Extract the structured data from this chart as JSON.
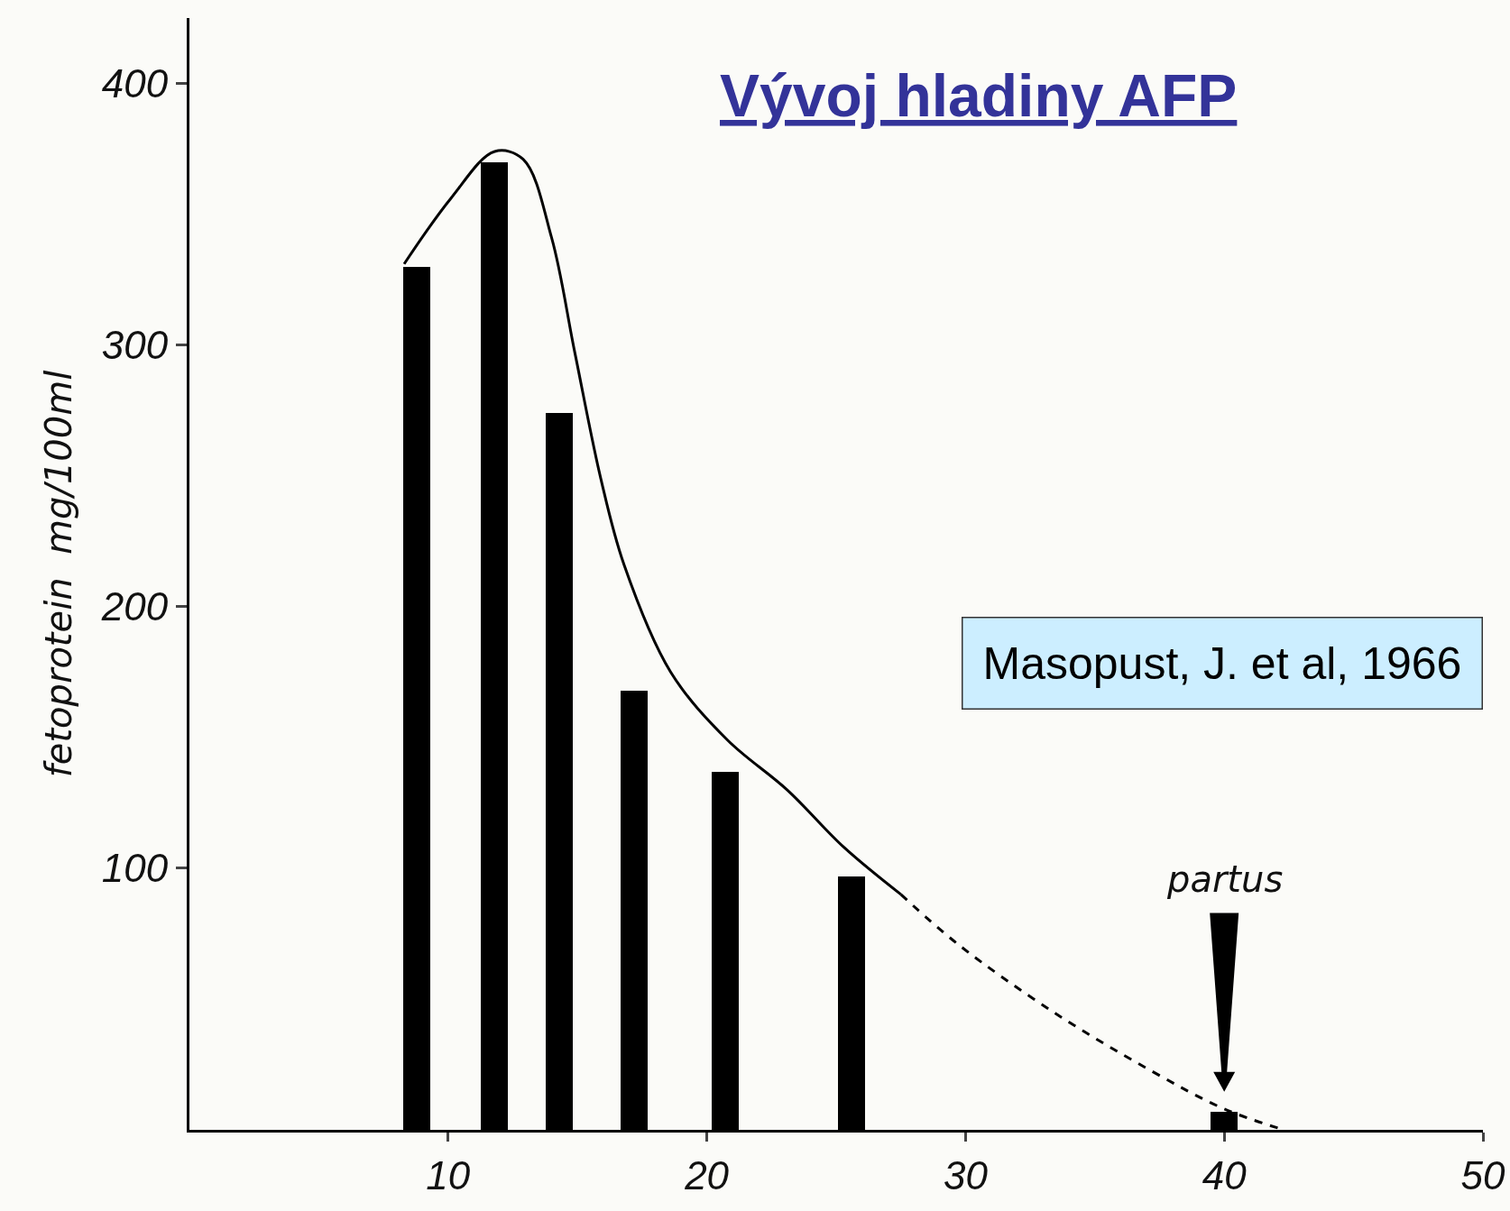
{
  "chart_data": {
    "type": "bar",
    "title": "Vývoj hladiny AFP",
    "ylabel": "fetoprotein  mg/100ml",
    "x": [
      8.8,
      11.8,
      14.3,
      17.2,
      20.7,
      25.6,
      40
    ],
    "series": [
      {
        "color": "#000000",
        "values": [
          330,
          370,
          274,
          168,
          137,
          97,
          7
        ]
      },
      {
        "type": "line",
        "color": "#000000",
        "line_style": "solid",
        "x": [
          8.3,
          10.1,
          11.8,
          12.9,
          14.0,
          14.9,
          15.9,
          16.8,
          18.6,
          20.8,
          23.1,
          25.3,
          27.5
        ],
        "values": [
          331,
          356,
          374,
          371,
          341,
          297,
          249,
          216,
          175,
          149,
          130,
          108,
          90
        ]
      },
      {
        "type": "line",
        "color": "#000000",
        "line_style": "dashed",
        "x": [
          27.5,
          29.7,
          33.4,
          37.1,
          40,
          42.3
        ],
        "values": [
          90,
          71,
          45,
          23,
          8,
          0
        ]
      }
    ],
    "annotations": [
      "Masopust, J. et al, 1966",
      "partus"
    ],
    "xlim": [
      0,
      50
    ],
    "xticks": [
      10,
      20,
      30,
      40,
      50
    ],
    "ylim": [
      0,
      425
    ],
    "yticks": [
      100,
      200,
      300,
      400
    ],
    "marker": "none"
  }
}
